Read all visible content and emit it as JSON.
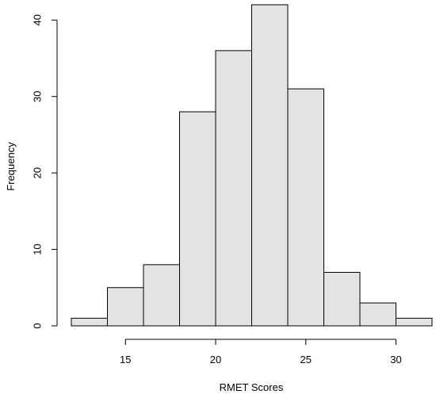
{
  "chart_data": {
    "type": "bar",
    "title": "",
    "xlabel": "RMET Scores",
    "ylabel": "Frequency",
    "bins": [
      {
        "x0": 12,
        "x1": 14,
        "count": 1
      },
      {
        "x0": 14,
        "x1": 16,
        "count": 5
      },
      {
        "x0": 16,
        "x1": 18,
        "count": 8
      },
      {
        "x0": 18,
        "x1": 20,
        "count": 28
      },
      {
        "x0": 20,
        "x1": 22,
        "count": 36
      },
      {
        "x0": 22,
        "x1": 24,
        "count": 42
      },
      {
        "x0": 24,
        "x1": 26,
        "count": 31
      },
      {
        "x0": 26,
        "x1": 28,
        "count": 7
      },
      {
        "x0": 28,
        "x1": 30,
        "count": 3
      },
      {
        "x0": 30,
        "x1": 32,
        "count": 1
      }
    ],
    "xlim": [
      12,
      32
    ],
    "ylim": [
      0,
      42
    ],
    "x_ticks": [
      "15",
      "20",
      "25",
      "30"
    ],
    "y_ticks": [
      "0",
      "10",
      "20",
      "30",
      "40"
    ],
    "grid": false,
    "bar_fill": "#e3e3e3",
    "bar_stroke": "#000000"
  }
}
